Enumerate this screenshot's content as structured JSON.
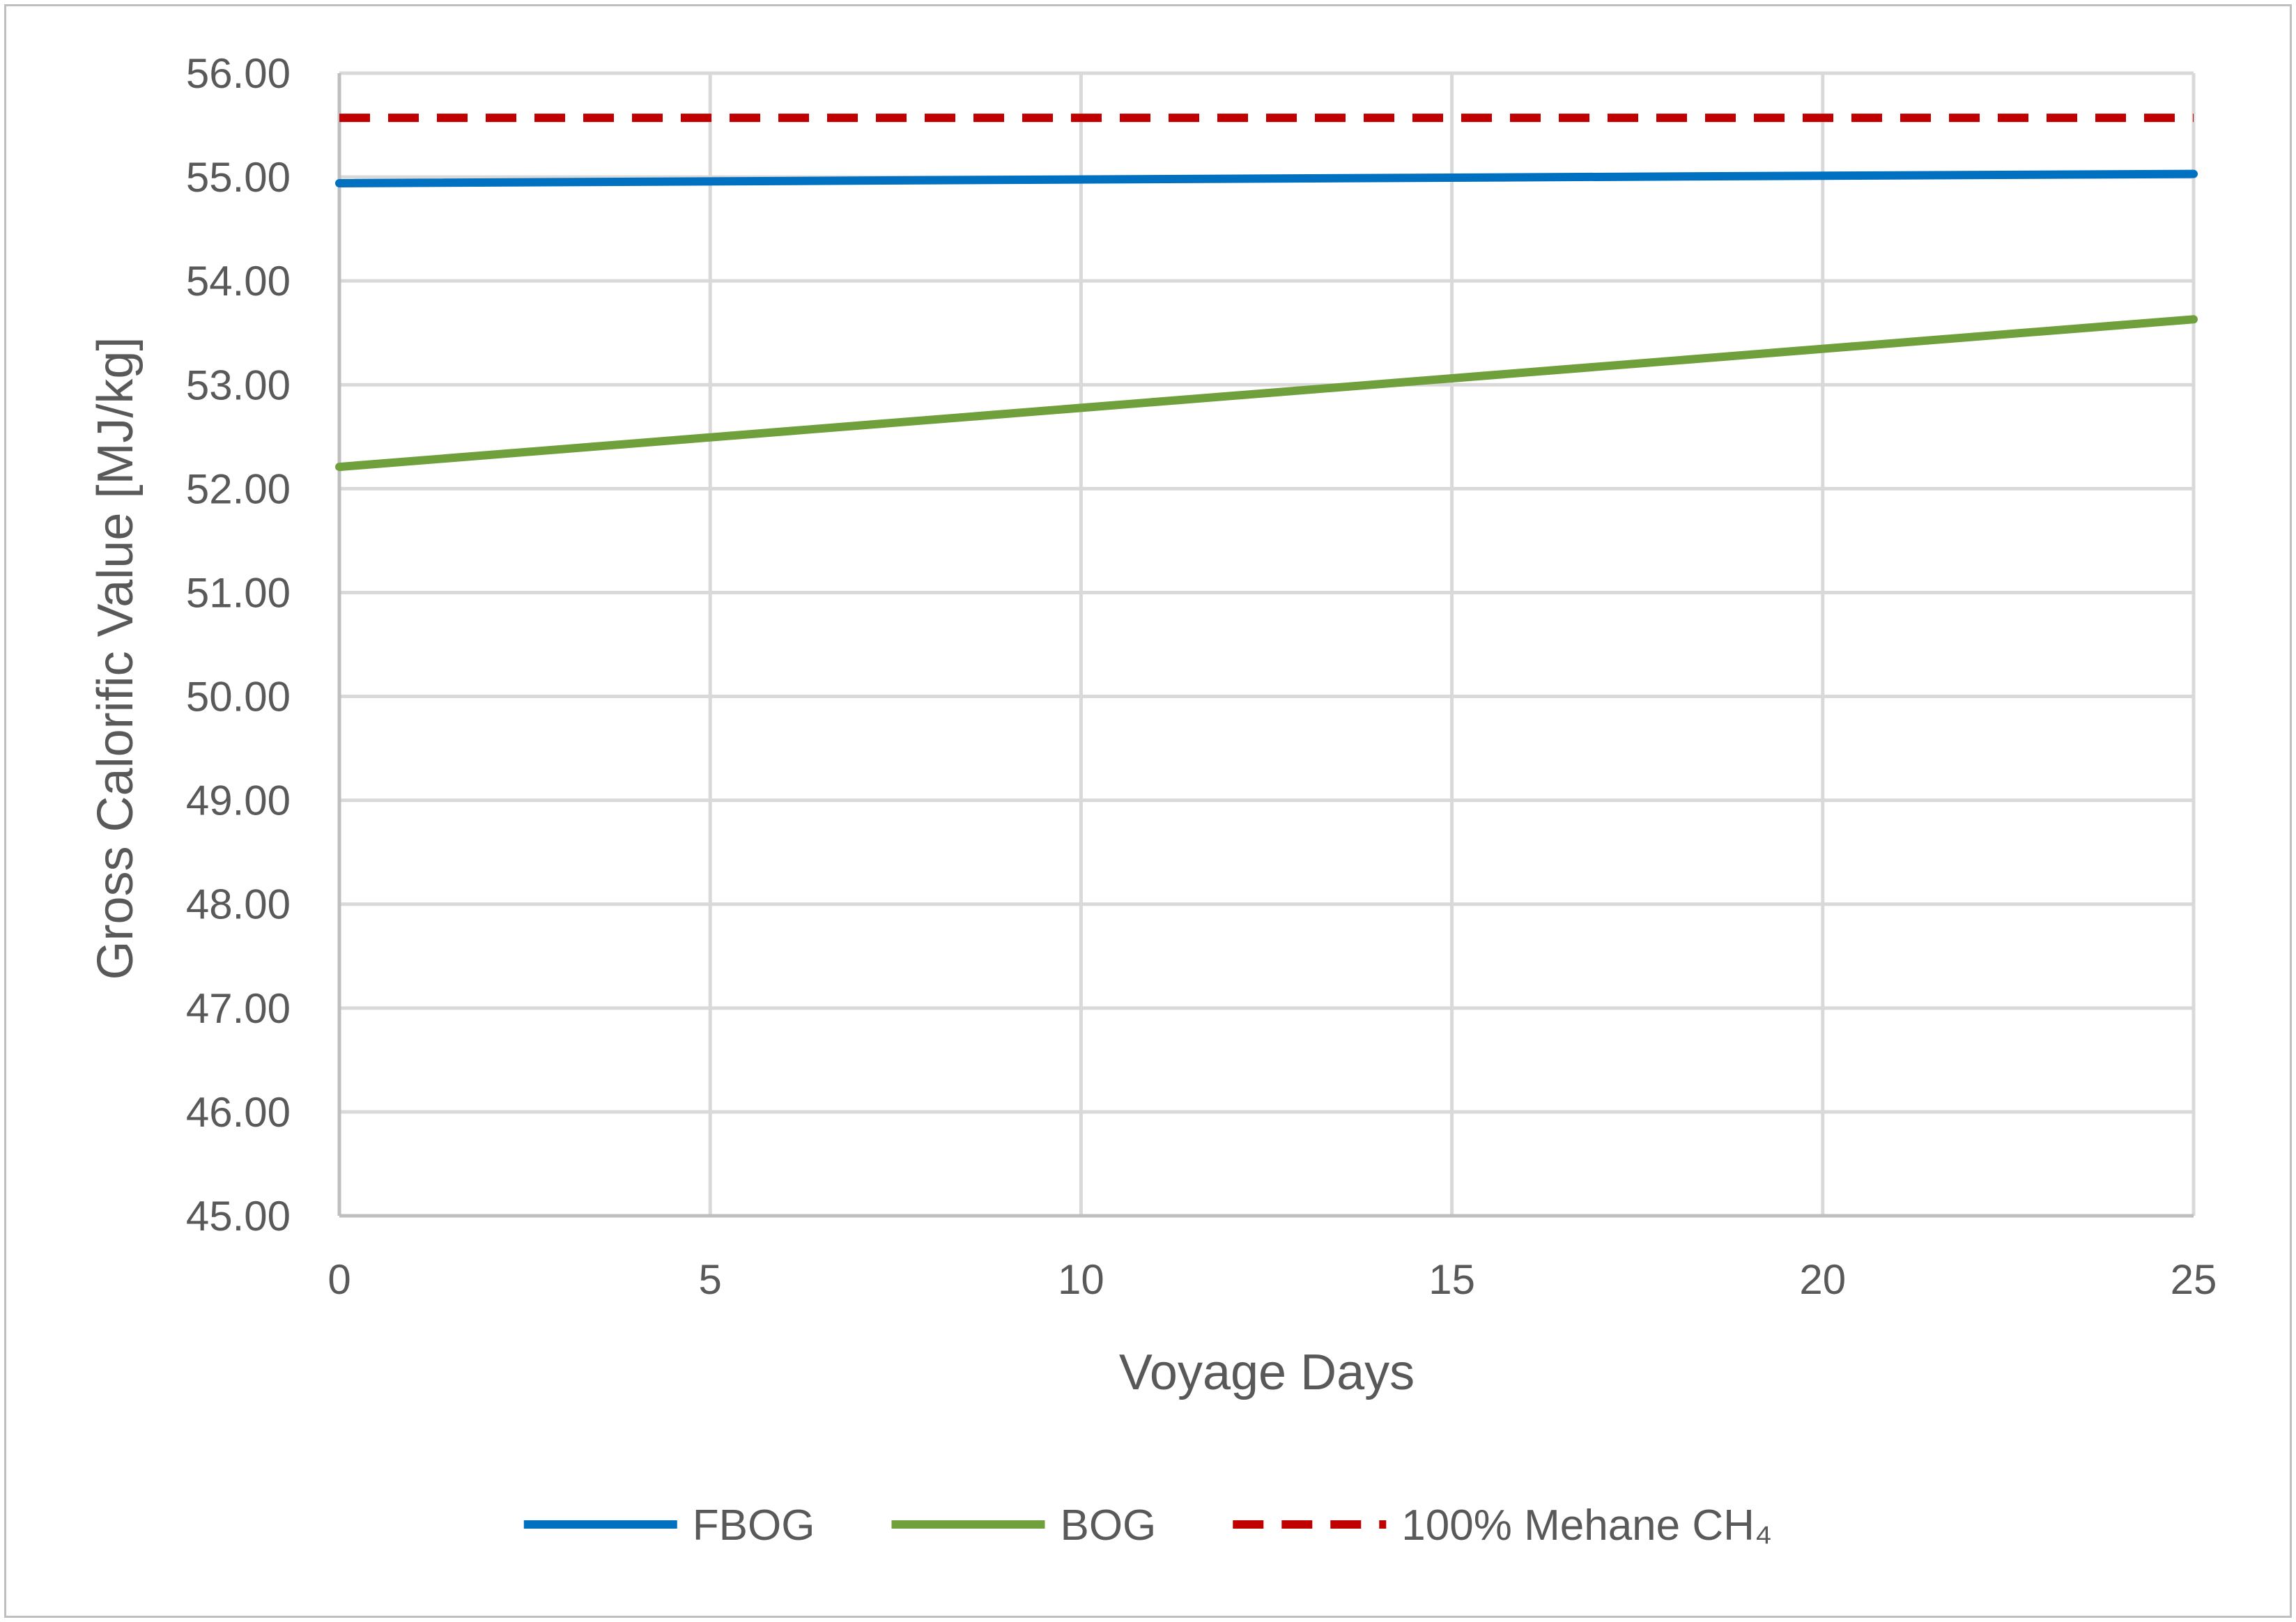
{
  "chart_data": {
    "type": "line",
    "title": "",
    "xlabel": "Voyage Days",
    "ylabel": "Gross Calorific Value [MJ/kg]",
    "xlim": [
      0,
      25
    ],
    "ylim": [
      45,
      56
    ],
    "x_ticks": [
      0,
      5,
      10,
      15,
      20,
      25
    ],
    "y_ticks": [
      "45.00",
      "46.00",
      "47.00",
      "48.00",
      "49.00",
      "50.00",
      "51.00",
      "52.00",
      "53.00",
      "54.00",
      "55.00",
      "56.00"
    ],
    "grid": true,
    "legend_position": "bottom",
    "series": [
      {
        "name": "FBOG",
        "color": "#0070c0",
        "style": "solid",
        "x": [
          0,
          25
        ],
        "y": [
          54.94,
          55.03
        ]
      },
      {
        "name": "BOG",
        "color": "#70a03c",
        "style": "solid",
        "x": [
          0,
          25
        ],
        "y": [
          52.21,
          53.63
        ]
      },
      {
        "name": "100% Mehane CH₄",
        "color": "#c00000",
        "style": "dashed",
        "x": [
          0,
          25
        ],
        "y": [
          55.57,
          55.57
        ]
      }
    ]
  }
}
